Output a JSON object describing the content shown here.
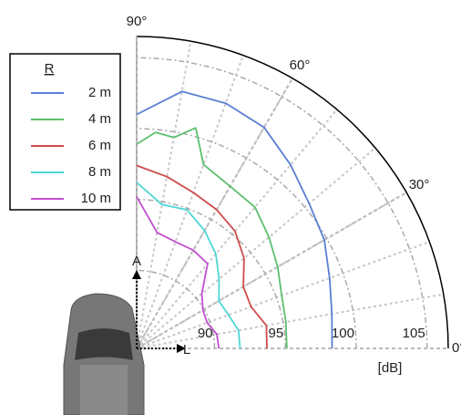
{
  "chart_data": {
    "type": "polar",
    "rlim": [
      84.5,
      106.5
    ],
    "rticks": [
      90,
      95,
      100,
      105
    ],
    "thetalim": [
      0,
      90
    ],
    "thetaticks": [
      {
        "value": 0,
        "label": "0°"
      },
      {
        "value": 30,
        "label": "30°"
      },
      {
        "value": 60,
        "label": "60°"
      },
      {
        "value": 90,
        "label": "90°"
      }
    ],
    "radial_axis_label": "[dB]",
    "legend_title": "R",
    "legend": "upper left",
    "annotations": [
      "A",
      "L"
    ],
    "series": [
      {
        "name": "2 m",
        "color": "#5b7fd4",
        "theta": [
          0,
          10,
          20,
          30,
          40,
          50,
          60,
          70,
          80,
          90
        ],
        "values": [
          98.3,
          98.5,
          99.0,
          99.8,
          100.4,
          101.4,
          102.5,
          102.9,
          102.9,
          101.0
        ]
      },
      {
        "name": "4 m",
        "color": "#5cbf6e",
        "theta": [
          0,
          10,
          20,
          30,
          40,
          50,
          60,
          70,
          75,
          80,
          85,
          90
        ],
        "values": [
          95.1,
          95.2,
          95.4,
          96.0,
          96.7,
          97.5,
          97.7,
          98.3,
          100.6,
          99.6,
          99.8,
          98.9
        ]
      },
      {
        "name": "6 m",
        "color": "#d04a4a",
        "theta": [
          0,
          10,
          20,
          30,
          40,
          50,
          60,
          70,
          80,
          90
        ],
        "values": [
          93.7,
          93.8,
          93.1,
          93.2,
          94.4,
          95.3,
          95.8,
          96.2,
          96.8,
          97.4
        ]
      },
      {
        "name": "8 m",
        "color": "#4fd6d6",
        "theta": [
          0,
          10,
          20,
          30,
          40,
          50,
          60,
          70,
          80,
          90
        ],
        "values": [
          91.8,
          91.8,
          91.4,
          91.2,
          92.1,
          93.2,
          94.1,
          94.9,
          94.8,
          96.2
        ]
      },
      {
        "name": "10 m",
        "color": "#c24fd0",
        "theta": [
          0,
          10,
          20,
          30,
          40,
          50,
          60,
          70,
          80,
          90
        ],
        "values": [
          90.3,
          90.25,
          89.8,
          89.9,
          90.5,
          92.3,
          92.5,
          92.5,
          92.8,
          95.2
        ]
      }
    ]
  }
}
